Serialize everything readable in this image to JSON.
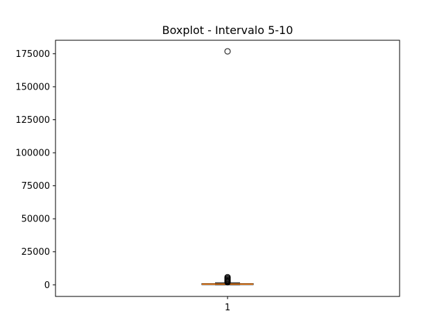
{
  "chart_data": {
    "type": "boxplot",
    "title": "Boxplot - Intervalo 5-10",
    "xlabel": "",
    "ylabel": "",
    "categories": [
      "1"
    ],
    "ylim": [
      -8800,
      185200
    ],
    "yticks": [
      0,
      25000,
      50000,
      75000,
      100000,
      125000,
      150000,
      175000
    ],
    "ytick_labels": [
      "0",
      "25000",
      "50000",
      "75000",
      "100000",
      "125000",
      "150000",
      "175000"
    ],
    "grid": false,
    "boxes": [
      {
        "category": "1",
        "whisker_low": 0,
        "q1": 150,
        "median": 500,
        "q3": 900,
        "whisker_high": 1600,
        "outliers": [
          1900,
          2300,
          2800,
          3300,
          3900,
          4500,
          5100,
          5800,
          176800
        ]
      }
    ],
    "colors": {
      "box": "#000000",
      "median": "#ff7f0e",
      "outlier": "#000000",
      "axes": "#000000"
    }
  }
}
